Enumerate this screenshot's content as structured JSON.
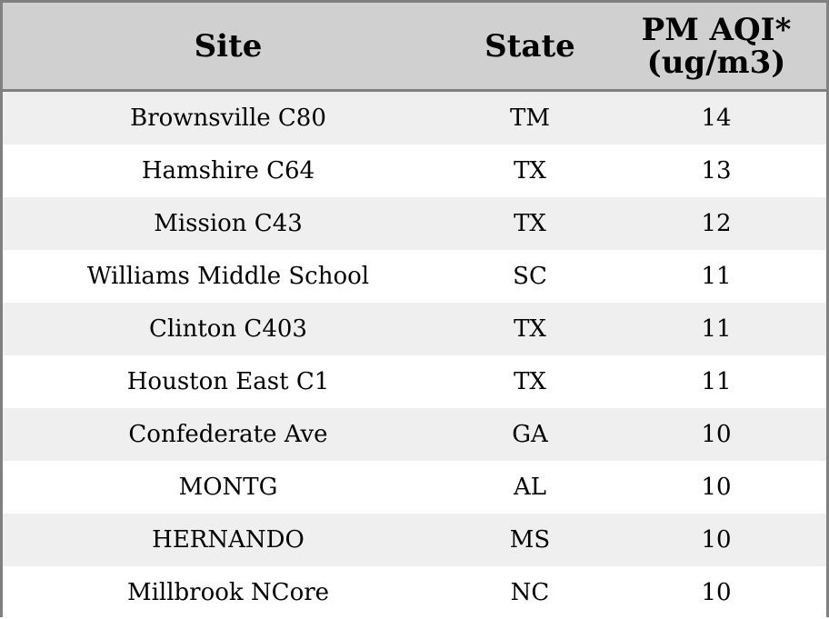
{
  "chart_data": {
    "type": "table",
    "columns": [
      "Site",
      "State",
      "PM AQI*",
      "(ug/m3)"
    ],
    "rows": [
      {
        "site": "Brownsville C80",
        "state": "TM",
        "pm_aqi": 14
      },
      {
        "site": "Hamshire C64",
        "state": "TX",
        "pm_aqi": 13
      },
      {
        "site": "Mission C43",
        "state": "TX",
        "pm_aqi": 12
      },
      {
        "site": "Williams Middle School",
        "state": "SC",
        "pm_aqi": 11
      },
      {
        "site": "Clinton C403",
        "state": "TX",
        "pm_aqi": 11
      },
      {
        "site": "Houston East C1",
        "state": "TX",
        "pm_aqi": 11
      },
      {
        "site": "Confederate Ave",
        "state": "GA",
        "pm_aqi": 10
      },
      {
        "site": "MONTG",
        "state": "AL",
        "pm_aqi": 10
      },
      {
        "site": "HERNANDO",
        "state": "MS",
        "pm_aqi": 10
      },
      {
        "site": "Millbrook NCore",
        "state": "NC",
        "pm_aqi": 10
      }
    ]
  },
  "colors": {
    "header_bg": "#d0d0d0",
    "stripe_bg": "#efefef",
    "border": "#808080"
  }
}
